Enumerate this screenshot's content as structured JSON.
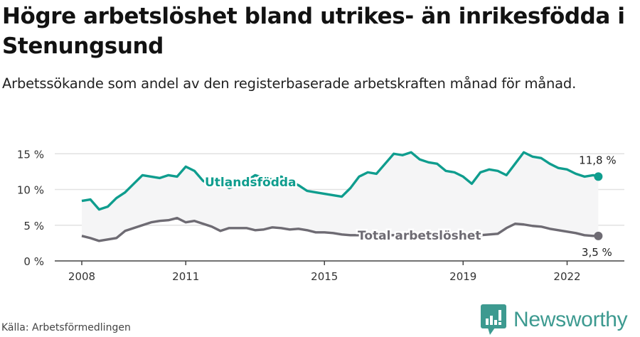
{
  "header": {
    "title": "Högre arbetslöshet bland utrikes- än inrikesfödda i Stenungsund",
    "subtitle": "Arbetssökande som andel av den registerbaserade arbetskraften månad för månad."
  },
  "footer": {
    "source": "Källa: Arbetsförmedlingen",
    "logo_text": "Newsworthy",
    "logo_icon": "bar-chart-speech-bubble-icon"
  },
  "colors": {
    "utlandsfodda": "#0f9d8e",
    "total": "#6e6b73",
    "band": "#f5f5f6",
    "grid": "#e2e2e2",
    "axis": "#444444",
    "logo": "#3d9a90"
  },
  "chart_data": {
    "type": "line",
    "title": "Högre arbetslöshet bland utrikes- än inrikesfödda i Stenungsund",
    "subtitle": "Arbetssökande som andel av den registerbaserade arbetskraften månad för månad.",
    "xlabel": "",
    "ylabel": "",
    "x_ticks": [
      "2008",
      "2011",
      "2015",
      "2019",
      "2022"
    ],
    "y_ticks": [
      "0 %",
      "5 %",
      "10 %",
      "15 %"
    ],
    "ylim": [
      0,
      15
    ],
    "grid": true,
    "legend": "inline labels",
    "x": [
      2008.0,
      2008.25,
      2008.5,
      2008.75,
      2009.0,
      2009.25,
      2009.5,
      2009.75,
      2010.0,
      2010.25,
      2010.5,
      2010.75,
      2011.0,
      2011.25,
      2011.5,
      2011.75,
      2012.0,
      2012.25,
      2012.5,
      2012.75,
      2013.0,
      2013.25,
      2013.5,
      2013.75,
      2014.0,
      2014.25,
      2014.5,
      2014.75,
      2015.0,
      2015.25,
      2015.5,
      2015.75,
      2016.0,
      2016.25,
      2016.5,
      2016.75,
      2017.0,
      2017.25,
      2017.5,
      2017.75,
      2018.0,
      2018.25,
      2018.5,
      2018.75,
      2019.0,
      2019.25,
      2019.5,
      2019.75,
      2020.0,
      2020.25,
      2020.5,
      2020.75,
      2021.0,
      2021.25,
      2021.5,
      2021.75,
      2022.0,
      2022.25,
      2022.5,
      2022.75,
      2022.9
    ],
    "series": [
      {
        "name": "Utlandsfödda",
        "end_label": "11,8 %",
        "values": [
          8.4,
          8.6,
          7.2,
          7.6,
          8.8,
          9.6,
          10.8,
          12.0,
          11.8,
          11.6,
          12.0,
          11.8,
          13.2,
          12.6,
          11.2,
          10.6,
          11.0,
          10.2,
          10.6,
          11.2,
          12.0,
          11.6,
          11.4,
          11.8,
          11.2,
          10.6,
          9.8,
          9.6,
          9.4,
          9.2,
          9.0,
          10.2,
          11.8,
          12.4,
          12.2,
          13.6,
          15.0,
          14.8,
          15.2,
          14.2,
          13.8,
          13.6,
          12.6,
          12.4,
          11.8,
          10.8,
          12.4,
          12.8,
          12.6,
          12.0,
          13.6,
          15.2,
          14.6,
          14.4,
          13.6,
          13.0,
          12.8,
          12.2,
          11.8,
          12.0,
          11.8
        ]
      },
      {
        "name": "Total arbetslöshet",
        "end_label": "3,5 %",
        "values": [
          3.5,
          3.2,
          2.8,
          3.0,
          3.2,
          4.2,
          4.6,
          5.0,
          5.4,
          5.6,
          5.7,
          6.0,
          5.4,
          5.6,
          5.2,
          4.8,
          4.2,
          4.6,
          4.6,
          4.6,
          4.3,
          4.4,
          4.7,
          4.6,
          4.4,
          4.5,
          4.3,
          4.0,
          4.0,
          3.9,
          3.7,
          3.6,
          3.6,
          3.6,
          3.6,
          3.6,
          3.6,
          3.6,
          3.6,
          3.6,
          3.6,
          3.6,
          3.6,
          3.6,
          3.6,
          3.6,
          3.6,
          3.7,
          3.8,
          4.6,
          5.2,
          5.1,
          4.9,
          4.8,
          4.5,
          4.3,
          4.1,
          3.9,
          3.6,
          3.5,
          3.5
        ]
      }
    ]
  }
}
